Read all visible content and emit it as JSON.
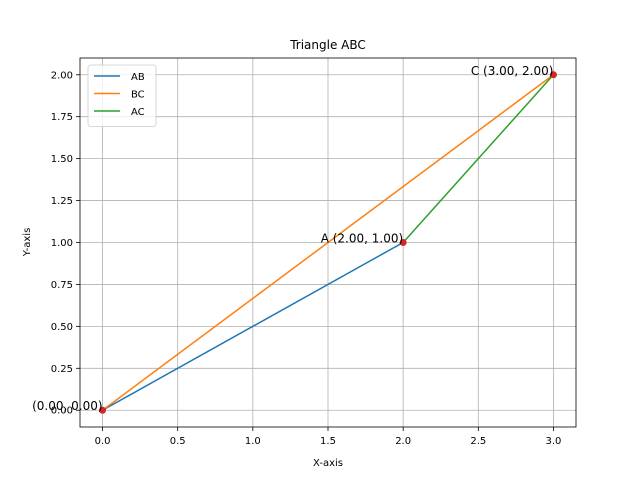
{
  "chart_data": {
    "type": "line",
    "title": "Triangle ABC",
    "xlabel": "X-axis",
    "ylabel": "Y-axis",
    "xlim": [
      -0.15,
      3.15
    ],
    "ylim": [
      -0.1,
      2.1
    ],
    "xticks": [
      0.0,
      0.5,
      1.0,
      1.5,
      2.0,
      2.5,
      3.0
    ],
    "xtick_labels": [
      "0.0",
      "0.5",
      "1.0",
      "1.5",
      "2.0",
      "2.5",
      "3.0"
    ],
    "yticks": [
      0.0,
      0.25,
      0.5,
      0.75,
      1.0,
      1.25,
      1.5,
      1.75,
      2.0
    ],
    "ytick_labels": [
      "0.00",
      "0.25",
      "0.50",
      "0.75",
      "1.00",
      "1.25",
      "1.50",
      "1.75",
      "2.00"
    ],
    "grid": true,
    "legend_position": "top-left",
    "series": [
      {
        "name": "AB",
        "color": "#1f77b4",
        "x": [
          0,
          2
        ],
        "y": [
          0,
          1
        ]
      },
      {
        "name": "BC",
        "color": "#ff7f0e",
        "x": [
          0,
          3
        ],
        "y": [
          0,
          2
        ]
      },
      {
        "name": "AC",
        "color": "#2ca02c",
        "x": [
          2,
          3
        ],
        "y": [
          1,
          2
        ]
      }
    ],
    "points": {
      "color": "#d62728",
      "items": [
        {
          "x": 0,
          "y": 0,
          "label": "(0.00, 0.00)"
        },
        {
          "x": 2,
          "y": 1,
          "label": "A (2.00, 1.00)"
        },
        {
          "x": 3,
          "y": 2,
          "label": "C (3.00, 2.00)"
        }
      ]
    }
  }
}
